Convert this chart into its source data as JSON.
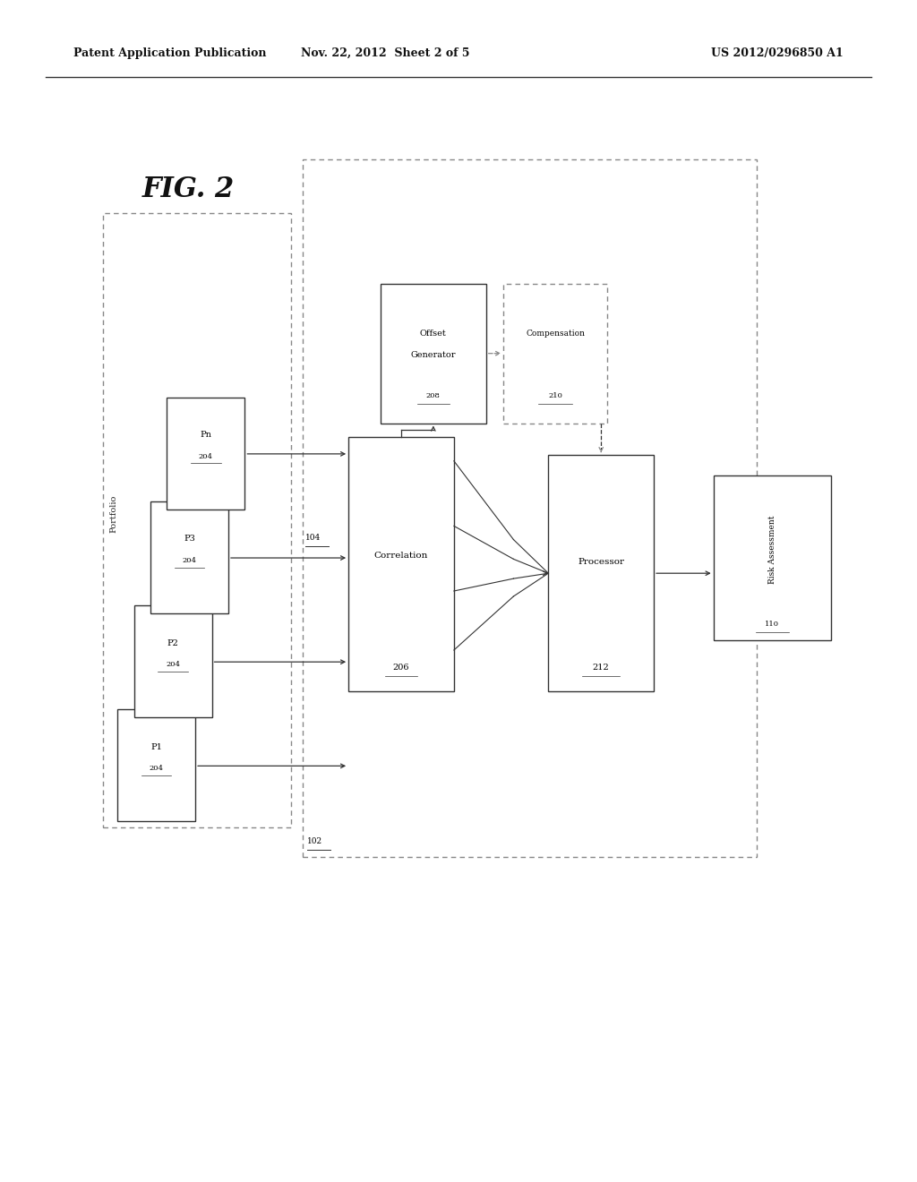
{
  "header_left": "Patent Application Publication",
  "header_mid": "Nov. 22, 2012  Sheet 2 of 5",
  "header_right": "US 2012/0296850 A1",
  "bg_color": "#ffffff",
  "ec": "#333333",
  "dashed_ec": "#888888"
}
